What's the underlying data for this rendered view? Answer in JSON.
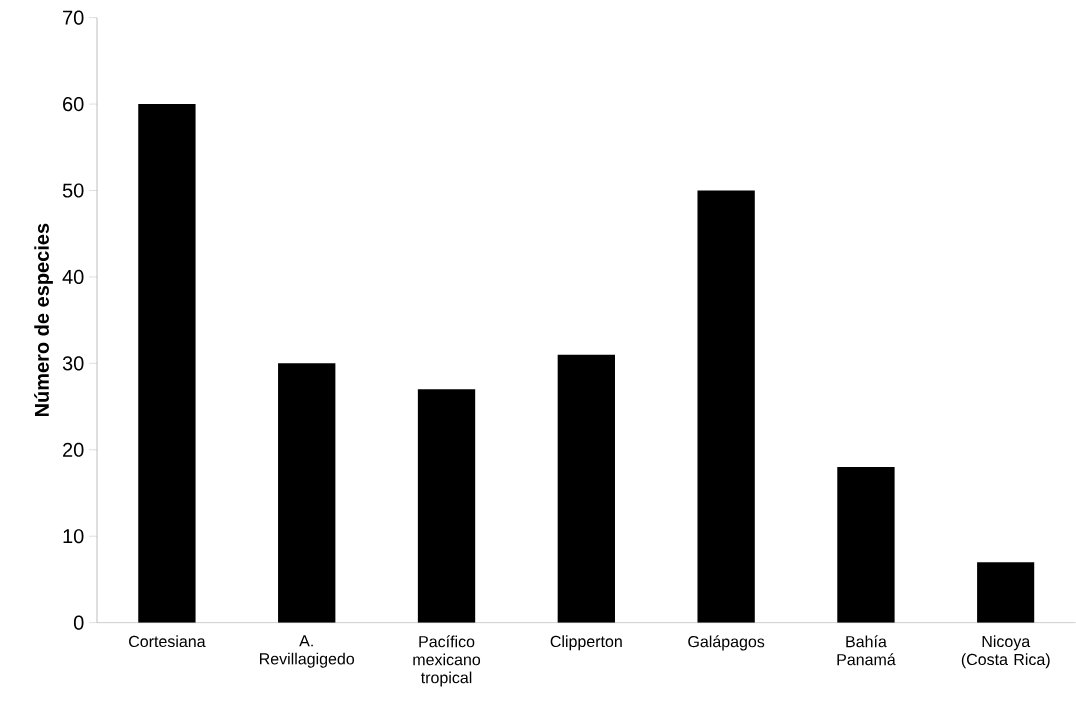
{
  "chart_data": {
    "type": "bar",
    "ylabel": "Número de especies",
    "categories": [
      "Cortesiana",
      "A. Revillagigedo",
      "Pacífico mexicano tropical",
      "Clipperton",
      "Galápagos",
      "Bahía Panamá",
      "Nicoya (Costa Rica)"
    ],
    "values": [
      60,
      30,
      27,
      31,
      50,
      18,
      7
    ],
    "color": "#000000",
    "ylim": [
      0,
      70
    ],
    "yticks": [
      0,
      10,
      20,
      30,
      40,
      50,
      60,
      70
    ]
  }
}
